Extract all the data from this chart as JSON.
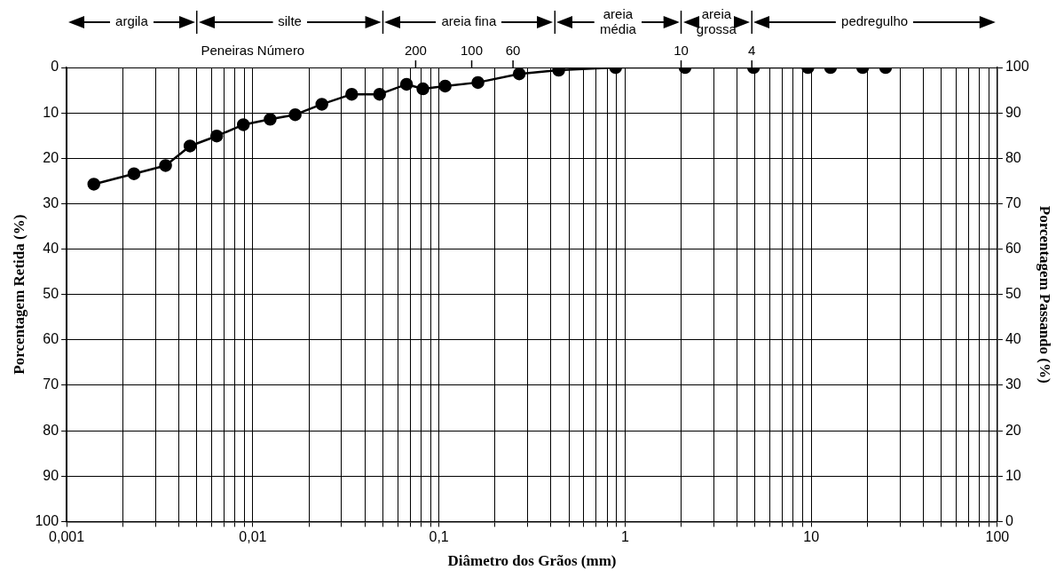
{
  "chart_data": {
    "type": "line",
    "xlabel": "Diâmetro dos Grãos (mm)",
    "ylabel": "Porcentagem Retida (%)",
    "y2label": "Porcentagem Passando (%)",
    "log": "x",
    "grid": true,
    "marker": "circle",
    "line_style": "solid",
    "x": [
      0.0014,
      0.0023,
      0.0034,
      0.0046,
      0.0064,
      0.0089,
      0.0124,
      0.0169,
      0.0235,
      0.034,
      0.048,
      0.067,
      0.082,
      0.108,
      0.162,
      0.27,
      0.44,
      0.89,
      2.1,
      4.9,
      9.6,
      12.7,
      18.9,
      25.1
    ],
    "series": [
      {
        "color": "#000000",
        "values": [
          25.7,
          23.4,
          21.6,
          17.3,
          15.1,
          12.6,
          11.4,
          10.4,
          8.1,
          5.9,
          5.9,
          3.7,
          4.7,
          4.1,
          3.3,
          1.4,
          0.6,
          0,
          0,
          0,
          0,
          0,
          0,
          0
        ]
      }
    ],
    "xlim": [
      0.001,
      100
    ],
    "xticks": [
      {
        "value": 0.001,
        "label": "0,001"
      },
      {
        "value": 0.002,
        "label": null
      },
      {
        "value": 0.003,
        "label": null
      },
      {
        "value": 0.004,
        "label": null
      },
      {
        "value": 0.005,
        "label": null
      },
      {
        "value": 0.006,
        "label": null
      },
      {
        "value": 0.007,
        "label": null
      },
      {
        "value": 0.008,
        "label": null
      },
      {
        "value": 0.009,
        "label": null
      },
      {
        "value": 0.01,
        "label": "0,01"
      },
      {
        "value": 0.02,
        "label": null
      },
      {
        "value": 0.03,
        "label": null
      },
      {
        "value": 0.04,
        "label": null
      },
      {
        "value": 0.05,
        "label": null
      },
      {
        "value": 0.06,
        "label": null
      },
      {
        "value": 0.07,
        "label": null
      },
      {
        "value": 0.08,
        "label": null
      },
      {
        "value": 0.09,
        "label": null
      },
      {
        "value": 0.1,
        "label": "0,1"
      },
      {
        "value": 0.2,
        "label": null
      },
      {
        "value": 0.3,
        "label": null
      },
      {
        "value": 0.4,
        "label": null
      },
      {
        "value": 0.5,
        "label": null
      },
      {
        "value": 0.6,
        "label": null
      },
      {
        "value": 0.7,
        "label": null
      },
      {
        "value": 0.8,
        "label": null
      },
      {
        "value": 0.9,
        "label": null
      },
      1,
      {
        "value": 2,
        "label": null
      },
      {
        "value": 3,
        "label": null
      },
      {
        "value": 4,
        "label": null
      },
      {
        "value": 5,
        "label": null
      },
      {
        "value": 6,
        "label": null
      },
      {
        "value": 7,
        "label": null
      },
      {
        "value": 8,
        "label": null
      },
      {
        "value": 9,
        "label": null
      },
      10,
      {
        "value": 20,
        "label": null
      },
      {
        "value": 30,
        "label": null
      },
      {
        "value": 40,
        "label": null
      },
      {
        "value": 50,
        "label": null
      },
      {
        "value": 60,
        "label": null
      },
      {
        "value": 70,
        "label": null
      },
      {
        "value": 80,
        "label": null
      },
      {
        "value": 90,
        "label": null
      },
      100
    ],
    "ylim": [
      100,
      0
    ],
    "yticks": [
      0,
      10,
      20,
      30,
      40,
      50,
      60,
      70,
      80,
      90,
      100
    ],
    "y2lim": [
      0,
      100
    ],
    "y2ticks": [
      0,
      10,
      20,
      30,
      40,
      50,
      60,
      70,
      80,
      90,
      100
    ],
    "annotations": [
      "argila",
      "silte",
      "areia fina",
      "areia\nmédia",
      "areia\ngrossa",
      "pedregulho",
      "Peneiras Número",
      "200",
      "100",
      "60",
      "10",
      "4"
    ]
  }
}
